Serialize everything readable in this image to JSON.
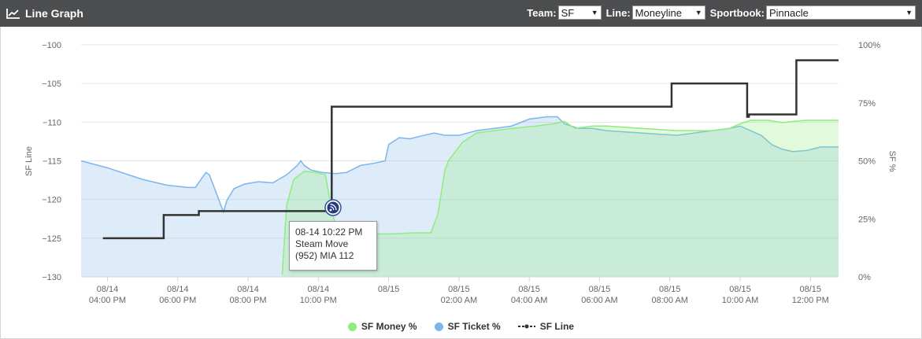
{
  "header": {
    "title": "Line Graph",
    "team_label": "Team:",
    "team_value": "SF",
    "line_label": "Line:",
    "line_value": "Moneyline",
    "sportsbook_label": "Sportbook:",
    "sportsbook_value": "Pinnacle"
  },
  "tooltip": {
    "time": "08-14 10:22 PM",
    "event": "Steam Move",
    "detail": "(952) MIA 112"
  },
  "colors": {
    "money": "#90ed7d",
    "ticket": "#7cb5ec",
    "line": "#333333"
  },
  "chart_data": {
    "type": "line",
    "ylabel_left": "SF Line",
    "ylabel_right": "SF %",
    "ylim_left": [
      -130,
      -100
    ],
    "ylim_right": [
      0,
      100
    ],
    "yticks_left": [
      "−100",
      "−105",
      "−110",
      "−115",
      "−120",
      "−125",
      "−130"
    ],
    "yticks_right": [
      "100%",
      "75%",
      "50%",
      "25%",
      "0%"
    ],
    "xlim": [
      15.25,
      36.8
    ],
    "x_unit": "hours from 08/14 00:00",
    "xticks": [
      {
        "x": 16,
        "l1": "08/14",
        "l2": "04:00 PM"
      },
      {
        "x": 18,
        "l1": "08/14",
        "l2": "06:00 PM"
      },
      {
        "x": 20,
        "l1": "08/14",
        "l2": "08:00 PM"
      },
      {
        "x": 22,
        "l1": "08/14",
        "l2": "10:00 PM"
      },
      {
        "x": 24,
        "l1": "08/15",
        "l2": ""
      },
      {
        "x": 26,
        "l1": "08/15",
        "l2": "02:00 AM"
      },
      {
        "x": 28,
        "l1": "08/15",
        "l2": "04:00 AM"
      },
      {
        "x": 30,
        "l1": "08/15",
        "l2": "06:00 AM"
      },
      {
        "x": 32,
        "l1": "08/15",
        "l2": "08:00 AM"
      },
      {
        "x": 34,
        "l1": "08/15",
        "l2": "10:00 AM"
      },
      {
        "x": 36,
        "l1": "08/15",
        "l2": "12:00 PM"
      }
    ],
    "legend_position": "bottom",
    "series": [
      {
        "name": "SF Ticket %",
        "axis": "right",
        "points": [
          [
            15.25,
            50
          ],
          [
            16,
            47
          ],
          [
            17,
            42
          ],
          [
            17.7,
            39.5
          ],
          [
            18.3,
            38.5
          ],
          [
            18.5,
            38.5
          ],
          [
            18.8,
            45
          ],
          [
            18.9,
            44
          ],
          [
            19.1,
            36
          ],
          [
            19.3,
            28
          ],
          [
            19.4,
            33
          ],
          [
            19.6,
            38
          ],
          [
            19.9,
            40
          ],
          [
            20.3,
            41
          ],
          [
            20.7,
            40.5
          ],
          [
            21.1,
            44
          ],
          [
            21.4,
            48
          ],
          [
            21.5,
            50
          ],
          [
            21.6,
            48
          ],
          [
            21.8,
            46
          ],
          [
            22.1,
            45
          ],
          [
            22.5,
            44.5
          ],
          [
            22.8,
            45
          ],
          [
            23.2,
            48
          ],
          [
            23.6,
            49
          ],
          [
            23.9,
            50
          ],
          [
            24,
            57
          ],
          [
            24.3,
            60
          ],
          [
            24.6,
            59.5
          ],
          [
            25,
            61
          ],
          [
            25.3,
            62
          ],
          [
            25.6,
            61
          ],
          [
            26,
            61
          ],
          [
            26.5,
            63
          ],
          [
            27,
            64
          ],
          [
            27.5,
            65
          ],
          [
            28,
            68
          ],
          [
            28.5,
            69
          ],
          [
            28.8,
            69
          ],
          [
            29,
            66
          ],
          [
            29.4,
            64
          ],
          [
            29.8,
            64
          ],
          [
            30.2,
            63
          ],
          [
            30.7,
            62.5
          ],
          [
            31.2,
            62
          ],
          [
            31.7,
            61.5
          ],
          [
            32.2,
            61
          ],
          [
            32.7,
            62
          ],
          [
            33.2,
            63
          ],
          [
            33.7,
            64
          ],
          [
            34,
            65
          ],
          [
            34.3,
            63
          ],
          [
            34.6,
            61
          ],
          [
            34.9,
            57
          ],
          [
            35.2,
            55
          ],
          [
            35.5,
            54
          ],
          [
            35.9,
            54.5
          ],
          [
            36.3,
            56
          ],
          [
            36.8,
            56
          ]
        ]
      },
      {
        "name": "SF Money %",
        "axis": "right",
        "points": [
          [
            20.97,
            1
          ],
          [
            21.1,
            31
          ],
          [
            21.3,
            42
          ],
          [
            21.6,
            45.5
          ],
          [
            21.9,
            45
          ],
          [
            22.2,
            44
          ],
          [
            22.4,
            27
          ],
          [
            22.6,
            18
          ],
          [
            22.9,
            18.5
          ],
          [
            23.4,
            18.5
          ],
          [
            24.1,
            18.5
          ],
          [
            24.7,
            19
          ],
          [
            25.2,
            19
          ],
          [
            25.4,
            27
          ],
          [
            25.6,
            46
          ],
          [
            25.7,
            50
          ],
          [
            26.1,
            58
          ],
          [
            26.5,
            62
          ],
          [
            27,
            63
          ],
          [
            27.5,
            64
          ],
          [
            28.2,
            65
          ],
          [
            28.7,
            66
          ],
          [
            29,
            67
          ],
          [
            29.3,
            64
          ],
          [
            29.8,
            65
          ],
          [
            30.2,
            65
          ],
          [
            30.7,
            64.5
          ],
          [
            31.2,
            64
          ],
          [
            31.7,
            63.5
          ],
          [
            32.2,
            63
          ],
          [
            32.7,
            63
          ],
          [
            33.2,
            63
          ],
          [
            33.7,
            64
          ],
          [
            34,
            66
          ],
          [
            34.3,
            67.5
          ],
          [
            34.8,
            67.5
          ],
          [
            35.2,
            66.5
          ],
          [
            35.5,
            67
          ],
          [
            35.9,
            67.5
          ],
          [
            36.3,
            67.5
          ],
          [
            36.8,
            67.5
          ]
        ]
      },
      {
        "name": "SF Line",
        "axis": "left",
        "steps": [
          [
            15.87,
            -125
          ],
          [
            17.6,
            -122
          ],
          [
            18.6,
            -121.5
          ],
          [
            22.38,
            -108
          ],
          [
            32.05,
            -105
          ],
          [
            34.2,
            -109.3
          ],
          [
            34.25,
            -109
          ],
          [
            35.6,
            -102
          ]
        ],
        "end_x": 36.8
      }
    ]
  }
}
